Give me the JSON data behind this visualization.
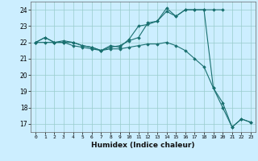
{
  "xlabel": "Humidex (Indice chaleur)",
  "ylabel": "",
  "background_color": "#cceeff",
  "grid_color": "#99cccc",
  "line_color": "#1a7070",
  "xlim": [
    -0.5,
    23.5
  ],
  "ylim": [
    16.5,
    24.5
  ],
  "yticks": [
    17,
    18,
    19,
    20,
    21,
    22,
    23,
    24
  ],
  "xticks": [
    0,
    1,
    2,
    3,
    4,
    5,
    6,
    7,
    8,
    9,
    10,
    11,
    12,
    13,
    14,
    15,
    16,
    17,
    18,
    19,
    20,
    21,
    22,
    23
  ],
  "series": [
    {
      "x": [
        0,
        1,
        2,
        3,
        4,
        5,
        6,
        7,
        8,
        9,
        10,
        11,
        12,
        13,
        14,
        15,
        16,
        17,
        18,
        19,
        20
      ],
      "y": [
        22.0,
        22.3,
        22.0,
        22.0,
        21.8,
        21.7,
        21.6,
        21.5,
        21.7,
        21.8,
        22.1,
        22.3,
        23.2,
        23.3,
        23.9,
        23.6,
        24.0,
        24.0,
        24.0,
        24.0,
        24.0
      ]
    },
    {
      "x": [
        0,
        1,
        2,
        3,
        4,
        5,
        6,
        7,
        8,
        9,
        10,
        11,
        12,
        13,
        14,
        15,
        16,
        17,
        18,
        19,
        20,
        21,
        22,
        23
      ],
      "y": [
        22.0,
        22.3,
        22.0,
        22.1,
        22.0,
        21.8,
        21.7,
        21.5,
        21.8,
        21.7,
        22.2,
        23.0,
        23.1,
        23.3,
        24.1,
        23.6,
        24.0,
        24.0,
        24.0,
        19.2,
        18.3,
        16.8,
        17.3,
        17.1
      ]
    },
    {
      "x": [
        0,
        1,
        2,
        3,
        4,
        5,
        6,
        7,
        8,
        9,
        10,
        11,
        12,
        13,
        14,
        15,
        16,
        17,
        18,
        19,
        20,
        21,
        22,
        23
      ],
      "y": [
        22.0,
        22.0,
        22.0,
        22.0,
        22.0,
        21.8,
        21.7,
        21.5,
        21.6,
        21.6,
        21.7,
        21.8,
        21.9,
        21.9,
        22.0,
        21.8,
        21.5,
        21.0,
        20.5,
        19.2,
        18.0,
        16.8,
        17.3,
        17.1
      ]
    }
  ]
}
